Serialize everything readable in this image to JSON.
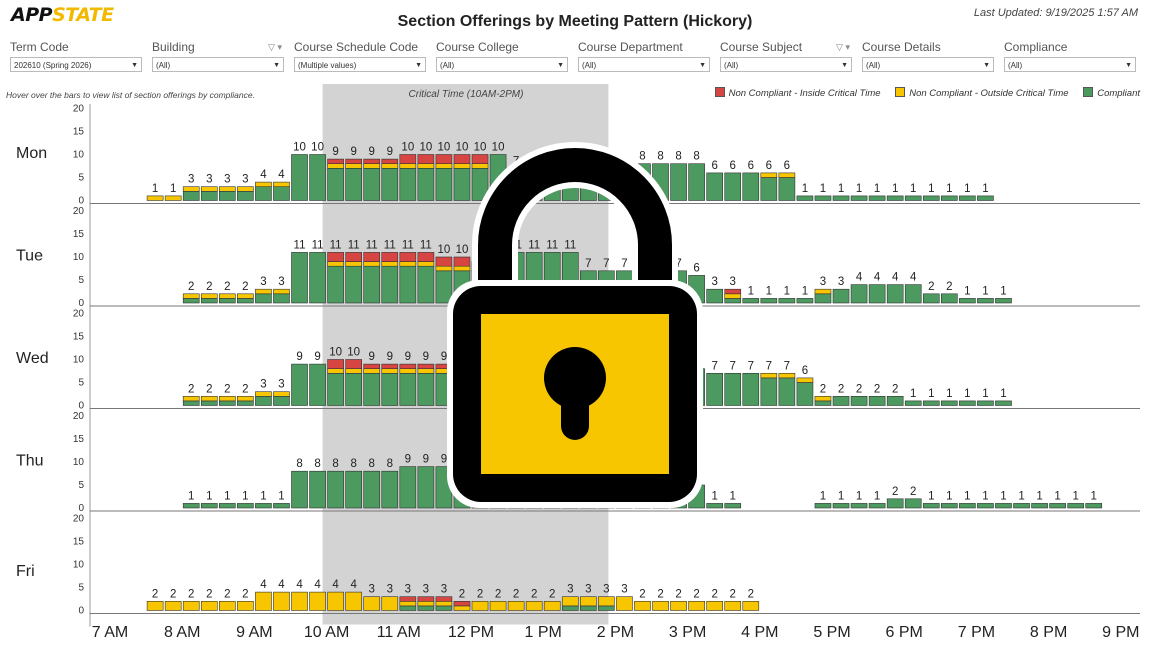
{
  "header": {
    "logo_main": "APP",
    "logo_accent": "STATE",
    "title": "Section Offerings by Meeting Pattern (Hickory)",
    "last_updated": "Last Updated: 9/19/2025 1:57 AM"
  },
  "filters": [
    {
      "label": "Term Code",
      "value": "202610 (Spring 2026)",
      "funnel": false
    },
    {
      "label": "Building",
      "value": "(All)",
      "funnel": true
    },
    {
      "label": "Course Schedule Code",
      "value": "(Multiple values)",
      "funnel": false
    },
    {
      "label": "Course College",
      "value": "(All)",
      "funnel": false
    },
    {
      "label": "Course Department",
      "value": "(All)",
      "funnel": false
    },
    {
      "label": "Course Subject",
      "value": "(All)",
      "funnel": true
    },
    {
      "label": "Course Details",
      "value": "(All)",
      "funnel": false
    },
    {
      "label": "Compliance",
      "value": "(All)",
      "funnel": false
    }
  ],
  "hint": "Hover over the bars to view list of section offerings by compliance.",
  "colors": {
    "red": "#d64541",
    "yellow": "#f7c600",
    "green": "#4c9a5f",
    "band": "#d3d3d3",
    "lock_body": "#f7c600",
    "lock_outline": "#000000"
  },
  "chart_data": {
    "type": "bar",
    "stacked": true,
    "critical_band_label": "Critical Time (10AM-2PM)",
    "x_ticks": [
      "7 AM",
      "8 AM",
      "9 AM",
      "10 AM",
      "11 AM",
      "12 PM",
      "1 PM",
      "2 PM",
      "3 PM",
      "4 PM",
      "5 PM",
      "6 PM",
      "7 PM",
      "8 PM",
      "9 PM"
    ],
    "y_ticks": [
      0,
      5,
      10,
      15,
      20
    ],
    "ylim": [
      0,
      20
    ],
    "legend": [
      {
        "name": "Non Compliant - Inside Critical Time",
        "color": "#d64541"
      },
      {
        "name": "Non Compliant - Outside Critical Time",
        "color": "#f7c600"
      },
      {
        "name": "Compliant",
        "color": "#4c9a5f"
      }
    ],
    "panels": [
      {
        "day": "Mon",
        "start": 7.5,
        "totals": [
          1,
          1,
          3,
          3,
          3,
          3,
          4,
          4,
          10,
          10,
          9,
          9,
          9,
          9,
          10,
          10,
          10,
          10,
          10,
          10,
          7,
          7,
          6,
          6,
          6,
          6,
          6,
          8,
          8,
          8,
          8,
          6,
          6,
          6,
          6,
          6,
          1,
          1,
          1,
          1,
          1,
          1,
          1,
          1,
          1,
          1,
          1
        ]
      },
      {
        "day": "Tue",
        "start": 8.0,
        "totals": [
          2,
          2,
          2,
          2,
          3,
          3,
          11,
          11,
          11,
          11,
          11,
          11,
          11,
          11,
          10,
          10,
          9,
          11,
          11,
          11,
          11,
          11,
          7,
          7,
          7,
          7,
          7,
          7,
          6,
          3,
          3,
          1,
          1,
          1,
          1,
          3,
          3,
          4,
          4,
          4,
          4,
          2,
          2,
          1,
          1,
          1
        ]
      },
      {
        "day": "Wed",
        "start": 8.0,
        "totals": [
          2,
          2,
          2,
          2,
          3,
          3,
          9,
          9,
          10,
          10,
          9,
          9,
          9,
          9,
          9,
          9,
          9,
          9,
          9,
          9,
          9,
          9,
          8,
          8,
          8,
          8,
          8,
          8,
          8,
          7,
          7,
          7,
          7,
          7,
          6,
          2,
          2,
          2,
          2,
          2,
          1,
          1,
          1,
          1,
          1,
          1
        ]
      },
      {
        "day": "Thu",
        "start": 8.0,
        "totals": [
          1,
          1,
          1,
          1,
          1,
          1,
          8,
          8,
          8,
          8,
          8,
          8,
          9,
          9,
          9,
          9,
          9,
          9,
          9,
          9,
          9,
          9,
          7,
          7,
          7,
          7,
          7,
          7,
          5,
          1,
          1,
          0,
          0,
          0,
          0,
          1,
          1,
          1,
          1,
          2,
          2,
          1,
          1,
          1,
          1,
          1,
          1,
          1,
          1,
          1,
          1
        ]
      },
      {
        "day": "Fri",
        "start": 7.5,
        "totals": [
          2,
          2,
          2,
          2,
          2,
          2,
          4,
          4,
          4,
          4,
          4,
          4,
          3,
          3,
          3,
          3,
          3,
          2,
          2,
          2,
          2,
          2,
          2,
          3,
          3,
          3,
          3,
          2,
          2,
          2,
          2,
          2,
          2,
          2
        ]
      }
    ]
  }
}
